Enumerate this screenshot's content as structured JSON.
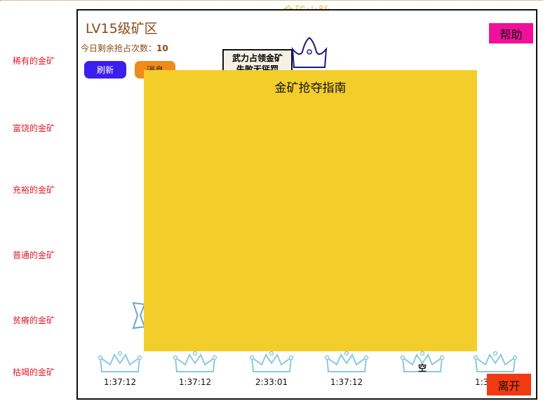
{
  "app": {
    "title": "金矿山脉"
  },
  "zone": {
    "title": "LV15级矿区",
    "attempts_label": "今日剩余抢占次数：",
    "attempts_value": "10"
  },
  "sidebar": {
    "items": [
      {
        "label": "稀有的金矿"
      },
      {
        "label": "富饶的金矿"
      },
      {
        "label": "充裕的金矿"
      },
      {
        "label": "普通的金矿"
      },
      {
        "label": "贫瘠的金矿"
      },
      {
        "label": "枯竭的金矿"
      }
    ]
  },
  "toolbar": {
    "refresh_label": "刷新",
    "message_label": "消息"
  },
  "header": {
    "help_label": "帮助"
  },
  "footer": {
    "leave_label": "离开"
  },
  "notice": {
    "line1": "武力占领金矿",
    "line2": "失败无惩罚"
  },
  "guide": {
    "title": "金矿抢夺指南"
  },
  "slots": [
    {
      "time": "1:37:12",
      "empty": ""
    },
    {
      "time": "1:37:12",
      "empty": ""
    },
    {
      "time": "2:33:01",
      "empty": ""
    },
    {
      "time": "1:37:12",
      "empty": ""
    },
    {
      "time": "",
      "empty": "空"
    },
    {
      "time": "1:3",
      "empty": ""
    }
  ],
  "colors": {
    "side_label": "#e01a2a",
    "overlay": "#f3ce2a",
    "refresh": "#3d1ef0",
    "message": "#f08a1a",
    "help": "#f0109a",
    "leave": "#f23a12",
    "crown": "#8cc9dd"
  },
  "icons": {
    "slot_icon": "crown-icon"
  }
}
